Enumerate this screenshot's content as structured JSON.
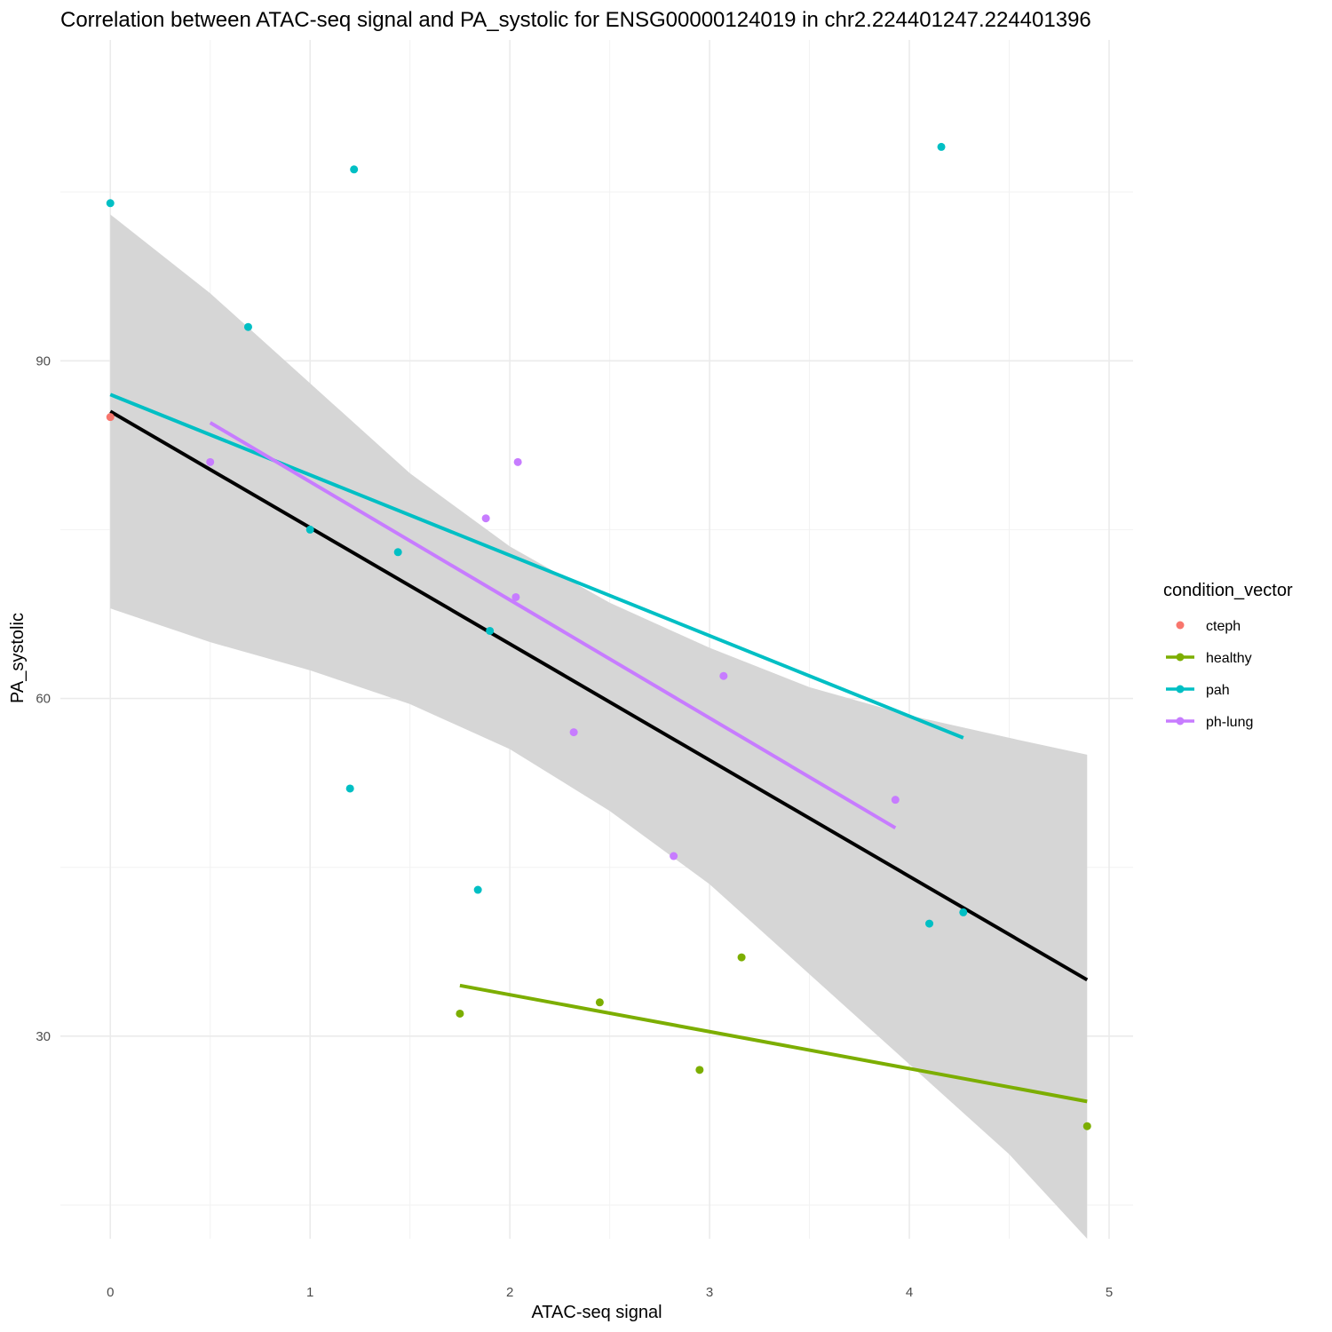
{
  "chart_data": {
    "type": "scatter",
    "title": "Correlation between ATAC-seq signal and PA_systolic for ENSG00000124019 in chr2.224401247.224401396",
    "xlabel": "ATAC-seq signal",
    "ylabel": "PA_systolic",
    "xlim": [
      -0.25,
      5.12
    ],
    "ylim": [
      12.0,
      118.5
    ],
    "x_ticks": [
      0,
      1,
      2,
      3,
      4,
      5
    ],
    "x_tick_labels": [
      "0",
      "1",
      "2",
      "3",
      "4",
      "5"
    ],
    "y_ticks": [
      30,
      60,
      90
    ],
    "y_tick_labels": [
      "30",
      "60",
      "90"
    ],
    "grid": true,
    "legend": {
      "title": "condition_vector",
      "placement": "right",
      "entries": [
        {
          "label": "cteph",
          "color": "#F8766D",
          "has_line": false
        },
        {
          "label": "healthy",
          "color": "#7CAE00",
          "has_line": true
        },
        {
          "label": "pah",
          "color": "#00BFC4",
          "has_line": true
        },
        {
          "label": "ph-lung",
          "color": "#C77CFF",
          "has_line": true
        }
      ]
    },
    "series": [
      {
        "name": "cteph",
        "color": "#F8766D",
        "points": [
          [
            0.0,
            85.0
          ]
        ]
      },
      {
        "name": "healthy",
        "color": "#7CAE00",
        "points": [
          [
            1.75,
            32.0
          ],
          [
            2.45,
            33.0
          ],
          [
            2.95,
            27.0
          ],
          [
            3.16,
            37.0
          ],
          [
            4.89,
            22.0
          ]
        ],
        "fit": [
          [
            1.75,
            34.5
          ],
          [
            4.89,
            24.2
          ]
        ]
      },
      {
        "name": "pah",
        "color": "#00BFC4",
        "points": [
          [
            0.0,
            104.0
          ],
          [
            0.69,
            93.0
          ],
          [
            1.22,
            107.0
          ],
          [
            1.0,
            75.0
          ],
          [
            1.44,
            73.0
          ],
          [
            1.9,
            66.0
          ],
          [
            1.2,
            52.0
          ],
          [
            1.84,
            43.0
          ],
          [
            4.1,
            40.0
          ],
          [
            4.27,
            41.0
          ],
          [
            4.16,
            109.0
          ]
        ],
        "fit": [
          [
            0.0,
            87.0
          ],
          [
            4.27,
            56.5
          ]
        ]
      },
      {
        "name": "ph-lung",
        "color": "#C77CFF",
        "points": [
          [
            0.5,
            81.0
          ],
          [
            1.88,
            76.0
          ],
          [
            2.04,
            81.0
          ],
          [
            2.03,
            69.0
          ],
          [
            2.32,
            57.0
          ],
          [
            2.82,
            46.0
          ],
          [
            3.07,
            62.0
          ],
          [
            3.93,
            51.0
          ]
        ],
        "fit": [
          [
            0.5,
            84.5
          ],
          [
            3.93,
            48.5
          ]
        ]
      }
    ],
    "overall_fit": {
      "color": "#000000",
      "line": [
        [
          0.0,
          85.5
        ],
        [
          4.89,
          35.0
        ]
      ],
      "ci_upper": [
        [
          0.0,
          103.0
        ],
        [
          0.5,
          96.0
        ],
        [
          1.0,
          88.0
        ],
        [
          1.5,
          80.0
        ],
        [
          2.0,
          73.5
        ],
        [
          2.5,
          68.5
        ],
        [
          3.0,
          64.5
        ],
        [
          3.5,
          61.0
        ],
        [
          4.0,
          58.5
        ],
        [
          4.5,
          56.5
        ],
        [
          4.89,
          55.0
        ]
      ],
      "ci_lower": [
        [
          0.0,
          68.0
        ],
        [
          0.5,
          65.0
        ],
        [
          1.0,
          62.5
        ],
        [
          1.5,
          59.5
        ],
        [
          2.0,
          55.5
        ],
        [
          2.5,
          50.0
        ],
        [
          3.0,
          43.5
        ],
        [
          3.5,
          35.5
        ],
        [
          4.0,
          27.5
        ],
        [
          4.5,
          19.5
        ],
        [
          4.89,
          12.0
        ]
      ],
      "ci_color": "#d6d6d6"
    }
  }
}
